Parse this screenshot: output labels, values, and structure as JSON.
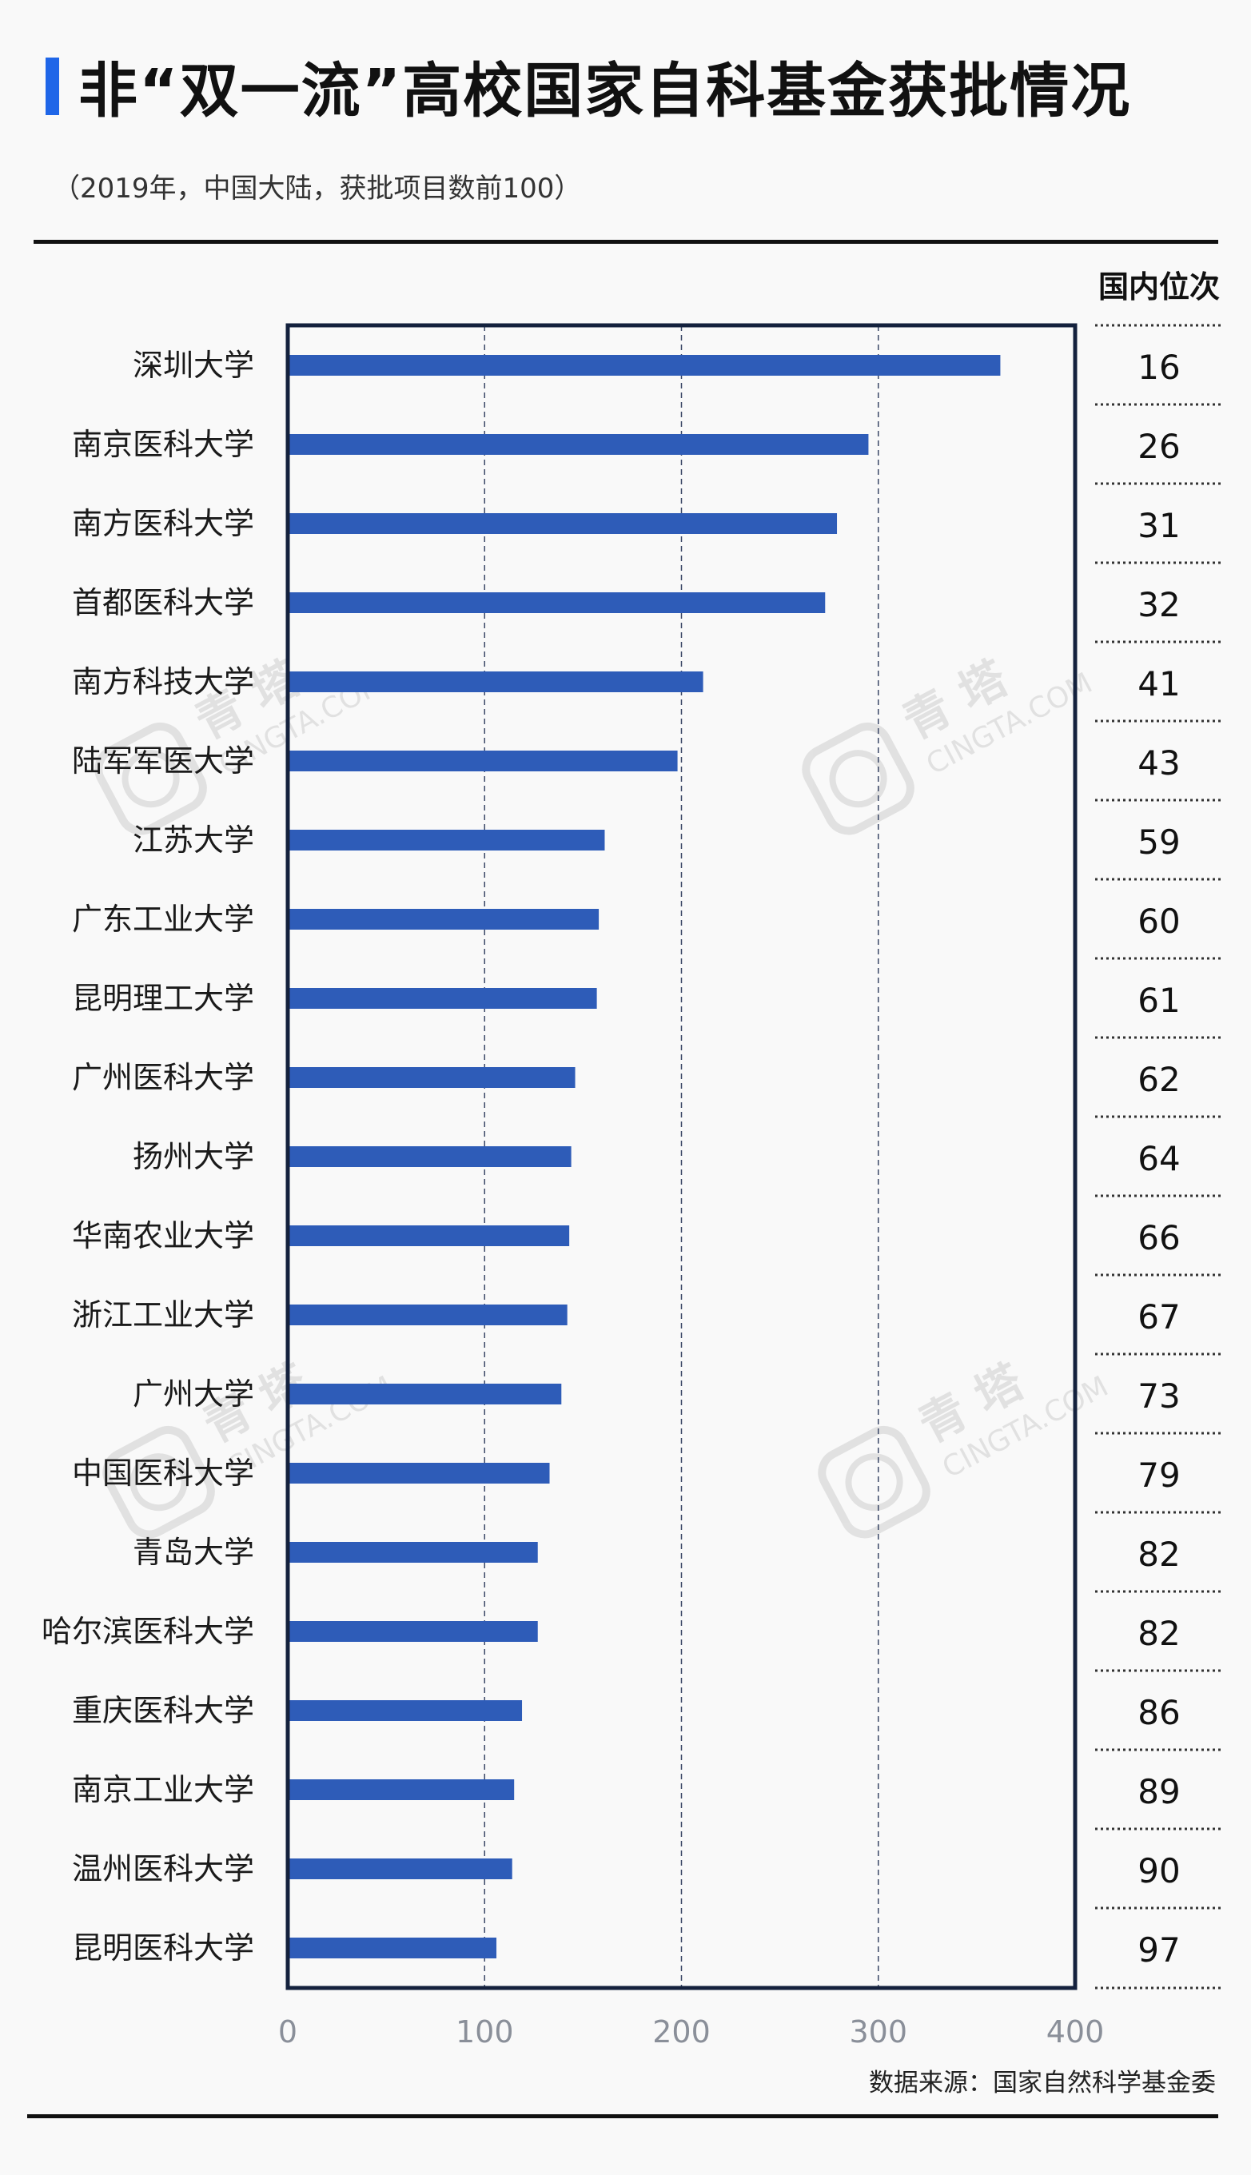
{
  "header": {
    "title": "非“双一流”高校国家自科基金获批情况",
    "subtitle": "（2019年，中国大陆，获批项目数前100）"
  },
  "footer": {
    "source": "数据来源：国家自然科学基金委"
  },
  "watermark": {
    "brand_cn": "青 塔",
    "brand_en": "CINGTA.COM"
  },
  "colors": {
    "accent": "#1f66e8",
    "bar": "#2e5cb8",
    "frame": "#14213d"
  },
  "chart_data": {
    "type": "bar",
    "orientation": "horizontal",
    "title": "",
    "xlabel": "",
    "ylabel": "",
    "xlim": [
      0,
      400
    ],
    "xticks": [
      0,
      100,
      200,
      300,
      400
    ],
    "grid": "vertical dashed lines at 100, 200, 300",
    "categories": [
      "深圳大学",
      "南京医科大学",
      "南方医科大学",
      "首都医科大学",
      "南方科技大学",
      "陆军军医大学",
      "江苏大学",
      "广东工业大学",
      "昆明理工大学",
      "广州医科大学",
      "扬州大学",
      "华南农业大学",
      "浙江工业大学",
      "广州大学",
      "中国医科大学",
      "青岛大学",
      "哈尔滨医科大学",
      "重庆医科大学",
      "南京工业大学",
      "温州医科大学",
      "昆明医科大学"
    ],
    "values": [
      362,
      295,
      279,
      273,
      211,
      198,
      161,
      158,
      157,
      146,
      144,
      143,
      142,
      139,
      133,
      127,
      127,
      119,
      115,
      114,
      106
    ],
    "rank_header": "国内位次",
    "ranks": [
      "16",
      "26",
      "31",
      "32",
      "41",
      "43",
      "59",
      "60",
      "61",
      "62",
      "64",
      "66",
      "67",
      "73",
      "79",
      "82",
      "82",
      "86",
      "89",
      "90",
      "97"
    ]
  }
}
